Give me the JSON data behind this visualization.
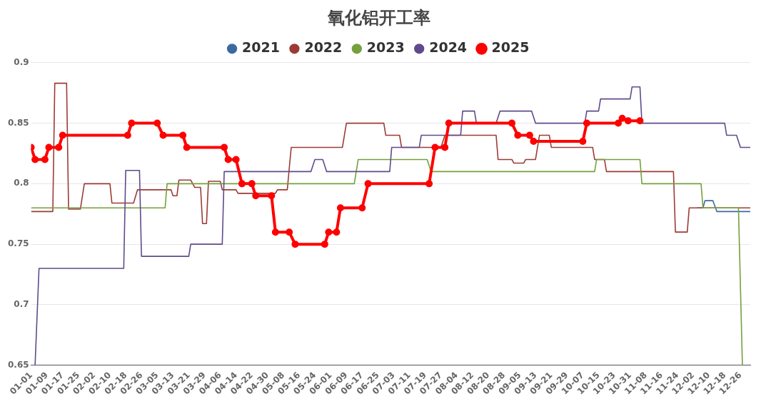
{
  "chart_data": {
    "type": "line",
    "title": "氧化铝开工率",
    "legend": "top",
    "grid": "y",
    "xlim": [
      "--01-01",
      "--12-31"
    ],
    "xticks": [
      {
        "value": "--01-01",
        "label": "01-01"
      },
      {
        "value": "--01-09",
        "label": "01-09"
      },
      {
        "value": "--01-17",
        "label": "01-17"
      },
      {
        "value": "--01-25",
        "label": "01-25"
      },
      {
        "value": "--02-02",
        "label": "02-02"
      },
      {
        "value": "--02-10",
        "label": "02-10"
      },
      {
        "value": "--02-18",
        "label": "02-18"
      },
      {
        "value": "--02-26",
        "label": "02-26"
      },
      {
        "value": "--03-05",
        "label": "03-05"
      },
      {
        "value": "--03-13",
        "label": "03-13"
      },
      {
        "value": "--03-21",
        "label": "03-21"
      },
      {
        "value": "--03-29",
        "label": "03-29"
      },
      {
        "value": "--04-06",
        "label": "04-06"
      },
      {
        "value": "--04-14",
        "label": "04-14"
      },
      {
        "value": "--04-22",
        "label": "04-22"
      },
      {
        "value": "--04-30",
        "label": "04-30"
      },
      {
        "value": "--05-08",
        "label": "05-08"
      },
      {
        "value": "--05-16",
        "label": "05-16"
      },
      {
        "value": "--05-24",
        "label": "05-24"
      },
      {
        "value": "--06-01",
        "label": "06-01"
      },
      {
        "value": "--06-09",
        "label": "06-09"
      },
      {
        "value": "--06-17",
        "label": "06-17"
      },
      {
        "value": "--06-25",
        "label": "06-25"
      },
      {
        "value": "--07-03",
        "label": "07-03"
      },
      {
        "value": "--07-11",
        "label": "07-11"
      },
      {
        "value": "--07-19",
        "label": "07-19"
      },
      {
        "value": "--07-27",
        "label": "07-27"
      },
      {
        "value": "--08-04",
        "label": "08-04"
      },
      {
        "value": "--08-12",
        "label": "08-12"
      },
      {
        "value": "--08-20",
        "label": "08-20"
      },
      {
        "value": "--08-28",
        "label": "08-28"
      },
      {
        "value": "--09-05",
        "label": "09-05"
      },
      {
        "value": "--09-13",
        "label": "09-13"
      },
      {
        "value": "--09-21",
        "label": "09-21"
      },
      {
        "value": "--09-29",
        "label": "09-29"
      },
      {
        "value": "--10-07",
        "label": "10-07"
      },
      {
        "value": "--10-15",
        "label": "10-15"
      },
      {
        "value": "--10-23",
        "label": "10-23"
      },
      {
        "value": "--10-31",
        "label": "10-31"
      },
      {
        "value": "--11-08",
        "label": "11-08"
      },
      {
        "value": "--11-16",
        "label": "11-16"
      },
      {
        "value": "--11-24",
        "label": "11-24"
      },
      {
        "value": "--12-02",
        "label": "12-02"
      },
      {
        "value": "--12-10",
        "label": "12-10"
      },
      {
        "value": "--12-18",
        "label": "12-18"
      },
      {
        "value": "--12-26",
        "label": "12-26"
      }
    ],
    "ylim": [
      0.65,
      0.9
    ],
    "yticks": [
      0.65,
      0.7,
      0.75,
      0.8,
      0.85,
      0.9
    ],
    "series": [
      {
        "name": "2021",
        "color": "#3c6aa0",
        "marker": "none",
        "x": [
          "--12-04",
          "--12-07",
          "--12-08",
          "--12-12",
          "--12-14",
          "--12-31"
        ],
        "values": [
          0.78,
          0.78,
          0.786,
          0.786,
          0.777,
          0.777
        ]
      },
      {
        "name": "2022",
        "color": "#9c3b36",
        "marker": "none",
        "x": [
          "--01-01",
          "--01-12",
          "--01-13",
          "--01-19",
          "--01-20",
          "--01-26",
          "--01-28",
          "--02-10",
          "--02-11",
          "--02-22",
          "--02-24",
          "--03-12",
          "--03-13",
          "--03-15",
          "--03-16",
          "--03-22",
          "--03-24",
          "--03-27",
          "--03-28",
          "--03-30",
          "--03-31",
          "--04-06",
          "--04-07",
          "--04-14",
          "--04-15",
          "--05-04",
          "--05-05",
          "--05-10",
          "--05-12",
          "--06-07",
          "--06-09",
          "--06-28",
          "--06-29",
          "--07-06",
          "--07-07",
          "--07-27",
          "--07-29",
          "--08-24",
          "--08-25",
          "--09-01",
          "--09-02",
          "--09-07",
          "--09-08",
          "--09-13",
          "--09-15",
          "--09-20",
          "--09-21",
          "--10-12",
          "--10-13",
          "--10-18",
          "--10-19",
          "--11-22",
          "--11-23",
          "--11-29",
          "--11-30",
          "--12-31"
        ],
        "values": [
          0.777,
          0.777,
          0.883,
          0.883,
          0.779,
          0.779,
          0.8,
          0.8,
          0.784,
          0.784,
          0.795,
          0.795,
          0.79,
          0.79,
          0.803,
          0.803,
          0.797,
          0.797,
          0.767,
          0.767,
          0.802,
          0.802,
          0.795,
          0.795,
          0.792,
          0.792,
          0.795,
          0.795,
          0.83,
          0.83,
          0.85,
          0.85,
          0.84,
          0.84,
          0.83,
          0.83,
          0.84,
          0.84,
          0.82,
          0.82,
          0.817,
          0.817,
          0.82,
          0.82,
          0.84,
          0.84,
          0.83,
          0.83,
          0.82,
          0.82,
          0.81,
          0.81,
          0.76,
          0.76,
          0.78,
          0.78
        ]
      },
      {
        "name": "2023",
        "color": "#75a03c",
        "marker": "none",
        "x": [
          "--01-01",
          "--03-09",
          "--03-10",
          "--06-13",
          "--06-15",
          "--07-20",
          "--07-22",
          "--10-13",
          "--10-14",
          "--11-05",
          "--11-06",
          "--12-06",
          "--12-07",
          "--12-25",
          "--12-27"
        ],
        "values": [
          0.78,
          0.78,
          0.8,
          0.8,
          0.82,
          0.82,
          0.81,
          0.81,
          0.82,
          0.82,
          0.8,
          0.8,
          0.78,
          0.78,
          0.65
        ]
      },
      {
        "name": "2024",
        "color": "#5f4b8b",
        "marker": "none",
        "x": [
          "--01-01",
          "--01-03",
          "--01-05",
          "--02-17",
          "--02-18",
          "--02-25",
          "--02-26",
          "--03-21",
          "--03-22",
          "--04-07",
          "--04-08",
          "--05-22",
          "--05-24",
          "--05-28",
          "--05-30",
          "--07-01",
          "--07-02",
          "--07-16",
          "--07-17",
          "--08-06",
          "--08-07",
          "--08-13",
          "--08-14",
          "--08-24",
          "--08-26",
          "--09-11",
          "--09-13",
          "--10-08",
          "--10-09",
          "--10-15",
          "--10-16",
          "--10-31",
          "--11-01",
          "--11-05",
          "--11-06",
          "--12-18",
          "--12-19",
          "--12-24",
          "--12-26",
          "--12-31"
        ],
        "values": [
          0.65,
          0.65,
          0.73,
          0.73,
          0.811,
          0.811,
          0.74,
          0.74,
          0.75,
          0.75,
          0.81,
          0.81,
          0.82,
          0.82,
          0.81,
          0.81,
          0.83,
          0.83,
          0.84,
          0.84,
          0.86,
          0.86,
          0.85,
          0.85,
          0.86,
          0.86,
          0.85,
          0.85,
          0.86,
          0.86,
          0.87,
          0.87,
          0.88,
          0.88,
          0.85,
          0.85,
          0.84,
          0.84,
          0.83,
          0.83
        ]
      },
      {
        "name": "2025",
        "color": "#ff0000",
        "marker": "circle",
        "x": [
          "--01-01",
          "--01-03",
          "--01-08",
          "--01-10",
          "--01-15",
          "--01-17",
          "--02-19",
          "--02-21",
          "--03-05",
          "--03-08",
          "--03-18",
          "--03-20",
          "--04-08",
          "--04-10",
          "--04-14",
          "--04-17",
          "--04-22",
          "--04-24",
          "--05-02",
          "--05-04",
          "--05-11",
          "--05-14",
          "--05-29",
          "--05-31",
          "--06-04",
          "--06-06",
          "--06-17",
          "--06-20",
          "--07-21",
          "--07-24",
          "--07-29",
          "--07-31",
          "--09-01",
          "--09-04",
          "--09-10",
          "--09-12",
          "--10-07",
          "--10-09",
          "--10-25",
          "--10-27",
          "--10-30",
          "--11-05"
        ],
        "values": [
          0.83,
          0.82,
          0.82,
          0.83,
          0.83,
          0.84,
          0.84,
          0.85,
          0.85,
          0.84,
          0.84,
          0.83,
          0.83,
          0.82,
          0.82,
          0.8,
          0.8,
          0.79,
          0.79,
          0.76,
          0.76,
          0.75,
          0.75,
          0.76,
          0.76,
          0.78,
          0.78,
          0.8,
          0.8,
          0.83,
          0.83,
          0.85,
          0.85,
          0.84,
          0.84,
          0.835,
          0.835,
          0.85,
          0.85,
          0.854,
          0.852,
          0.852
        ]
      }
    ]
  }
}
